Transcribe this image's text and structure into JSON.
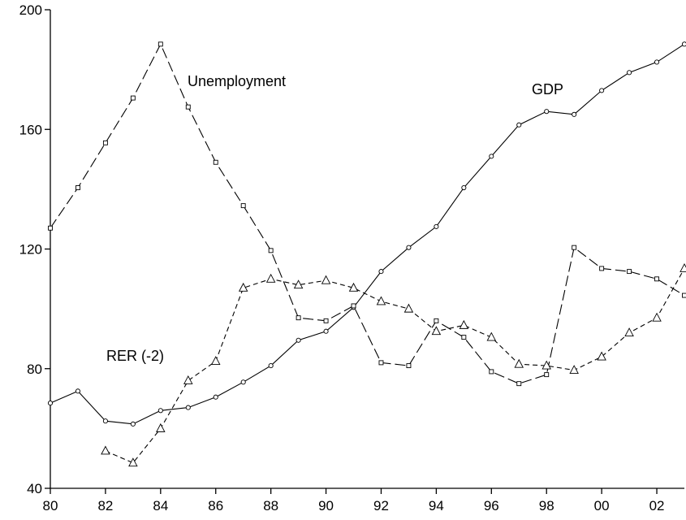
{
  "chart_data": {
    "type": "line",
    "title": "",
    "xlabel": "",
    "ylabel": "",
    "xlim": [
      1980,
      2003
    ],
    "ylim": [
      40,
      200
    ],
    "grid": false,
    "x_ticks": [
      1980,
      1982,
      1984,
      1986,
      1988,
      1990,
      1992,
      1994,
      1996,
      1998,
      2000,
      2002
    ],
    "x_tick_labels": [
      "80",
      "82",
      "84",
      "86",
      "88",
      "90",
      "92",
      "94",
      "96",
      "98",
      "00",
      "02"
    ],
    "y_ticks": [
      40,
      80,
      120,
      160,
      200
    ],
    "y_tick_labels": [
      "40",
      "80",
      "120",
      "160",
      "200"
    ],
    "series": [
      {
        "name": "GDP",
        "line_style": "solid",
        "marker": "circle",
        "x": [
          1980,
          1981,
          1982,
          1983,
          1984,
          1985,
          1986,
          1987,
          1988,
          1989,
          1990,
          1991,
          1992,
          1993,
          1994,
          1995,
          1996,
          1997,
          1998,
          1999,
          2000,
          2001,
          2002,
          2003
        ],
        "values": [
          68.5,
          72.5,
          62.5,
          61.5,
          66,
          67,
          70.5,
          75.5,
          81,
          89.5,
          92.5,
          100.5,
          112.5,
          120.5,
          127.5,
          140.5,
          151,
          161.5,
          166,
          165,
          173,
          179,
          182.5,
          188.5
        ]
      },
      {
        "name": "Unemployment",
        "line_style": "long-dash",
        "marker": "square",
        "x": [
          1980,
          1981,
          1982,
          1983,
          1984,
          1985,
          1986,
          1987,
          1988,
          1989,
          1990,
          1991,
          1992,
          1993,
          1994,
          1995,
          1996,
          1997,
          1998,
          1999,
          2000,
          2001,
          2002,
          2003
        ],
        "values": [
          127,
          140.5,
          155.5,
          170.5,
          188.5,
          167.5,
          149,
          134.5,
          119.5,
          97,
          96,
          101,
          82,
          81,
          96,
          90.5,
          79,
          75,
          78,
          120.5,
          113.5,
          112.5,
          110,
          104.5
        ]
      },
      {
        "name": "RER (-2)",
        "line_style": "short-dash",
        "marker": "triangle",
        "x": [
          1982,
          1983,
          1984,
          1985,
          1986,
          1987,
          1988,
          1989,
          1990,
          1991,
          1992,
          1993,
          1994,
          1995,
          1996,
          1997,
          1998,
          1999,
          2000,
          2001,
          2002,
          2003
        ],
        "values": [
          52.5,
          48.5,
          60,
          76,
          82.5,
          107,
          110,
          108,
          109.5,
          107,
          102.5,
          100,
          92.5,
          94.5,
          90.5,
          81.5,
          81,
          79.5,
          84,
          92,
          97,
          113.5
        ]
      }
    ],
    "labels": {
      "gdp": "GDP",
      "unemployment": "Unemployment",
      "rer": "RER (-2)"
    }
  }
}
